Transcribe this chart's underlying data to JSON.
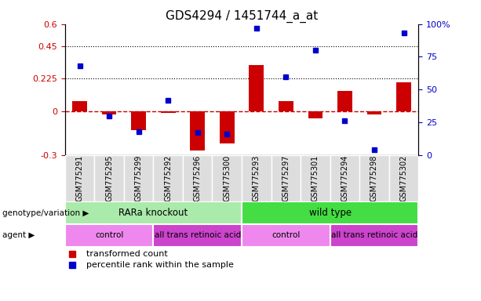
{
  "title": "GDS4294 / 1451744_a_at",
  "samples": [
    "GSM775291",
    "GSM775295",
    "GSM775299",
    "GSM775292",
    "GSM775296",
    "GSM775300",
    "GSM775293",
    "GSM775297",
    "GSM775301",
    "GSM775294",
    "GSM775298",
    "GSM775302"
  ],
  "transformed_count": [
    0.07,
    -0.02,
    -0.13,
    -0.01,
    -0.27,
    -0.22,
    0.32,
    0.07,
    -0.05,
    0.14,
    -0.02,
    0.2
  ],
  "percentile_rank": [
    68,
    30,
    18,
    42,
    17,
    16,
    97,
    60,
    80,
    26,
    4,
    93
  ],
  "bar_color": "#cc0000",
  "dot_color": "#0000cc",
  "dashed_line_color": "#cc0000",
  "left_ylim": [
    -0.3,
    0.6
  ],
  "right_ylim": [
    0,
    100
  ],
  "left_yticks": [
    -0.3,
    0.0,
    0.225,
    0.45,
    0.6
  ],
  "left_yticklabels": [
    "-0.3",
    "0",
    "0.225",
    "0.45",
    "0.6"
  ],
  "right_yticks": [
    0,
    25,
    50,
    75,
    100
  ],
  "right_yticklabels": [
    "0",
    "25",
    "50",
    "75",
    "100%"
  ],
  "hlines": [
    0.225,
    0.45
  ],
  "genotype_groups": [
    {
      "label": "RARa knockout",
      "start": 0,
      "end": 6,
      "color": "#aaeaaa"
    },
    {
      "label": "wild type",
      "start": 6,
      "end": 12,
      "color": "#44dd44"
    }
  ],
  "agent_groups": [
    {
      "label": "control",
      "start": 0,
      "end": 3,
      "color": "#ee88ee"
    },
    {
      "label": "all trans retinoic acid",
      "start": 3,
      "end": 6,
      "color": "#cc44cc"
    },
    {
      "label": "control",
      "start": 6,
      "end": 9,
      "color": "#ee88ee"
    },
    {
      "label": "all trans retinoic acid",
      "start": 9,
      "end": 12,
      "color": "#cc44cc"
    }
  ],
  "legend_items": [
    {
      "label": "transformed count",
      "color": "#cc0000"
    },
    {
      "label": "percentile rank within the sample",
      "color": "#0000cc"
    }
  ],
  "left_label_color": "#cc0000",
  "right_label_color": "#0000cc",
  "genotype_label": "genotype/variation",
  "agent_label": "agent",
  "tick_bg_color": "#dddddd"
}
